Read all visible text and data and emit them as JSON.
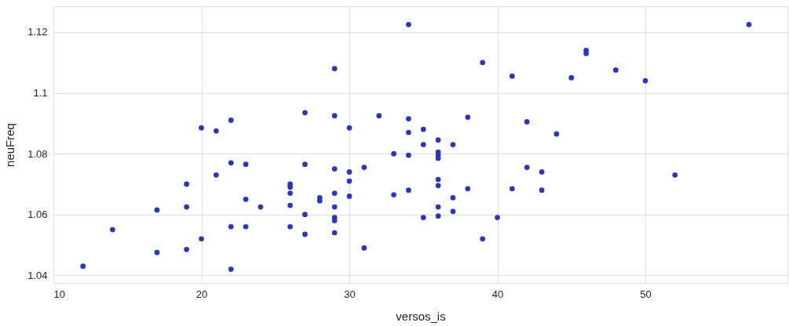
{
  "chart_data": {
    "type": "scatter",
    "xlabel": "versos_is",
    "ylabel": "neuFreq",
    "xlim": [
      10,
      59.6
    ],
    "ylim": [
      1.0375,
      1.1285
    ],
    "xticks": [
      10,
      20,
      30,
      40,
      50
    ],
    "yticks": [
      1.04,
      1.06,
      1.08,
      1.1,
      1.12
    ],
    "grid": true,
    "marker": "circle",
    "series": [
      {
        "color": "#2a35c0",
        "x": [
          12,
          14,
          17,
          17,
          19,
          19,
          19,
          20,
          20,
          21,
          21,
          22,
          22,
          22,
          22,
          23,
          23,
          23,
          24,
          26,
          26,
          26,
          26,
          26,
          27,
          27,
          27,
          27,
          28,
          28,
          29,
          29,
          29,
          29,
          29,
          29,
          29,
          29,
          30,
          30,
          30,
          30,
          31,
          31,
          32,
          33,
          33,
          34,
          34,
          34,
          34,
          34,
          35,
          35,
          35,
          36,
          36,
          36,
          36,
          36,
          36,
          36,
          36,
          37,
          37,
          37,
          38,
          38,
          39,
          39,
          40,
          41,
          41,
          42,
          42,
          43,
          43,
          44,
          45,
          46,
          46,
          48,
          50,
          52,
          57
        ],
        "values": [
          1.043,
          1.055,
          1.0615,
          1.0475,
          1.07,
          1.0625,
          1.0485,
          1.0885,
          1.052,
          1.0875,
          1.073,
          1.091,
          1.077,
          1.056,
          1.042,
          1.0765,
          1.065,
          1.056,
          1.0625,
          1.07,
          1.069,
          1.067,
          1.063,
          1.056,
          1.0935,
          1.0765,
          1.06,
          1.0535,
          1.0655,
          1.0645,
          1.108,
          1.0925,
          1.075,
          1.067,
          1.0625,
          1.059,
          1.058,
          1.054,
          1.0885,
          1.074,
          1.071,
          1.066,
          1.0755,
          1.049,
          1.0925,
          1.08,
          1.0665,
          1.1225,
          1.0915,
          1.087,
          1.0795,
          1.068,
          1.088,
          1.083,
          1.059,
          1.0845,
          1.0805,
          1.0795,
          1.0785,
          1.0715,
          1.0695,
          1.0625,
          1.0595,
          1.083,
          1.0655,
          1.061,
          1.092,
          1.0685,
          1.11,
          1.052,
          1.059,
          1.1055,
          1.0685,
          1.0905,
          1.0755,
          1.074,
          1.068,
          1.0865,
          1.105,
          1.114,
          1.113,
          1.1075,
          1.104,
          1.073,
          1.1225
        ]
      }
    ]
  }
}
